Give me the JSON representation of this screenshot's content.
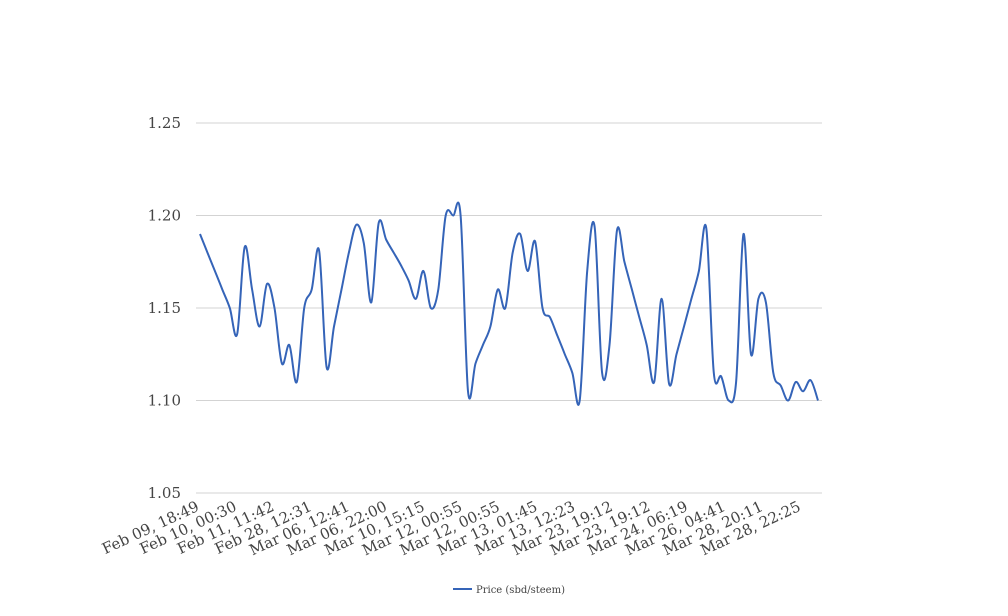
{
  "chart_data": {
    "type": "line",
    "title": "",
    "xlabel": "",
    "ylabel": "",
    "ylim": [
      1.05,
      1.25
    ],
    "y_ticks": [
      "1.05",
      "1.10",
      "1.15",
      "1.20",
      "1.25"
    ],
    "grid": true,
    "legend_position": "bottom",
    "x_tick_labels": [
      "Feb 09, 18:49",
      "Feb 10, 00:30",
      "Feb 11, 11:42",
      "Feb 28, 12:31",
      "Mar 06, 12:41",
      "Mar 06, 22:00",
      "Mar 10, 15:15",
      "Mar 12, 00:55",
      "Mar 12, 00:55",
      "Mar 13, 01:45",
      "Mar 13, 12:23",
      "Mar 23, 19:12",
      "Mar 23, 19:12",
      "Mar 24, 06:19",
      "Mar 26, 04:41",
      "Mar 28, 20:11",
      "Mar 28, 22:25"
    ],
    "series": [
      {
        "name": "Price (sbd/steem)",
        "color": "#3564b8",
        "values": [
          1.19,
          1.18,
          1.17,
          1.16,
          1.15,
          1.136,
          1.183,
          1.16,
          1.14,
          1.163,
          1.15,
          1.12,
          1.13,
          1.11,
          1.15,
          1.16,
          1.181,
          1.118,
          1.14,
          1.16,
          1.18,
          1.195,
          1.185,
          1.153,
          1.196,
          1.187,
          1.18,
          1.173,
          1.165,
          1.155,
          1.17,
          1.15,
          1.16,
          1.2,
          1.2,
          1.2,
          1.105,
          1.12,
          1.13,
          1.14,
          1.16,
          1.15,
          1.18,
          1.19,
          1.17,
          1.186,
          1.15,
          1.145,
          1.135,
          1.125,
          1.115,
          1.1,
          1.17,
          1.194,
          1.115,
          1.13,
          1.192,
          1.175,
          1.16,
          1.145,
          1.13,
          1.11,
          1.155,
          1.109,
          1.125,
          1.14,
          1.155,
          1.17,
          1.193,
          1.115,
          1.113,
          1.1,
          1.11,
          1.19,
          1.125,
          1.155,
          1.153,
          1.115,
          1.108,
          1.1,
          1.11,
          1.105,
          1.111,
          1.1
        ]
      }
    ]
  }
}
